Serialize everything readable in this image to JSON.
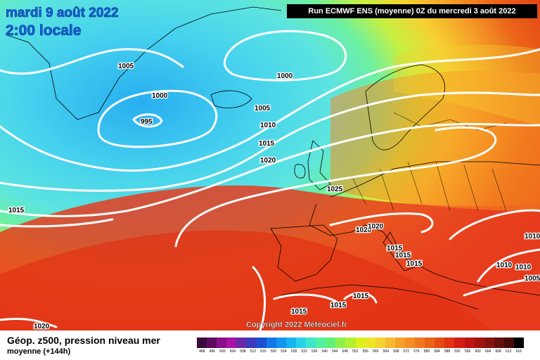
{
  "header": {
    "date": "mardi 9 août 2022",
    "time": "2:00 locale",
    "run": "Run ECMWF ENS (moyenne) 0Z du mercredi 3 août 2022"
  },
  "legend": {
    "title": "Géop. z500, pression niveau mer",
    "subtitle": "moyenne   (+144h)",
    "scale_colors": [
      "#3a0a3a",
      "#5e0a5e",
      "#8a0f8a",
      "#a814a8",
      "#6a2aa8",
      "#3c3cbe",
      "#1e50d2",
      "#1478e6",
      "#1496f0",
      "#14b4f0",
      "#28d2e6",
      "#3ce6c8",
      "#50f0a0",
      "#64f078",
      "#8cf050",
      "#b4f032",
      "#dcf01e",
      "#f0e628",
      "#f5d232",
      "#f5b932",
      "#f5a028",
      "#f58c23",
      "#f0781e",
      "#eb6419",
      "#e64b14",
      "#e13214",
      "#d21e14",
      "#be1414",
      "#a0140f",
      "#82140f",
      "#640f0f",
      "#460a0a",
      "#000000"
    ],
    "scale_labels": [
      "488",
      "496",
      "500",
      "504",
      "508",
      "512",
      "516",
      "520",
      "524",
      "528",
      "532",
      "536",
      "540",
      "544",
      "548",
      "552",
      "556",
      "560",
      "564",
      "568",
      "572",
      "576",
      "580",
      "584",
      "588",
      "592",
      "596",
      "600",
      "604",
      "608",
      "612",
      "616"
    ]
  },
  "isobars": {
    "labels": [
      {
        "id": "1005-a",
        "text": "1005"
      },
      {
        "id": "1000-a",
        "text": "1000"
      },
      {
        "id": "995",
        "text": "995"
      },
      {
        "id": "1000-b",
        "text": "1000"
      },
      {
        "id": "1005-b",
        "text": "1005"
      },
      {
        "id": "1010-a",
        "text": "1010"
      },
      {
        "id": "1015-a",
        "text": "1015"
      },
      {
        "id": "1020-a",
        "text": "1020"
      },
      {
        "id": "1025",
        "text": "1025"
      },
      {
        "id": "1015-b",
        "text": "1015"
      },
      {
        "id": "1020-b",
        "text": "1020"
      },
      {
        "id": "1020-c",
        "text": "1020"
      },
      {
        "id": "1015-c",
        "text": "1015"
      },
      {
        "id": "1015-d",
        "text": "1015"
      },
      {
        "id": "1015-e",
        "text": "1015"
      },
      {
        "id": "1015-f",
        "text": "1015"
      },
      {
        "id": "1015-g",
        "text": "1015"
      },
      {
        "id": "1015-h",
        "text": "1015"
      },
      {
        "id": "1010-b",
        "text": "1010"
      },
      {
        "id": "1010-c",
        "text": "1010"
      },
      {
        "id": "1010-d",
        "text": "1010"
      },
      {
        "id": "1005-c",
        "text": "1005"
      },
      {
        "id": "1020-d",
        "text": "1020"
      }
    ]
  },
  "copyright": "Copyright 2022 Météociel.fr"
}
